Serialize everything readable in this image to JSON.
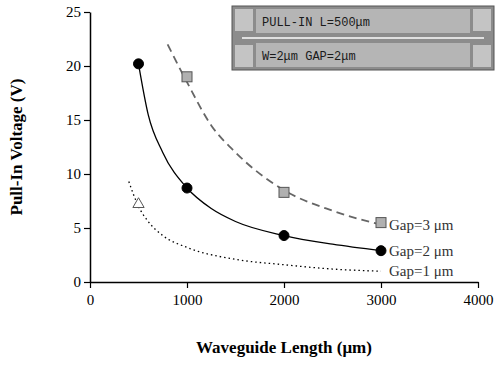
{
  "chart_data": {
    "type": "line",
    "x_label": "Waveguide Length (μm)",
    "y_label": "Pull-In Voltage (V)",
    "annotations": [
      "PULL-IN L=500μm",
      "W=2μm GAP=2μm"
    ],
    "xlim": [
      0,
      4000
    ],
    "xticks": [
      0,
      1000,
      2000,
      3000,
      4000
    ],
    "ylim": [
      0,
      25
    ],
    "yticks": [
      0,
      5,
      10,
      15,
      20,
      25
    ],
    "grid": false,
    "series": [
      {
        "name": "Gap=3 μm",
        "type": "line",
        "line_style": "dashed",
        "color": "#666666",
        "x": [
          800,
          1000,
          1250,
          1500,
          2000,
          2500,
          3000
        ],
        "values": [
          22,
          18.5,
          14.5,
          12,
          8.5,
          6.6,
          5.3
        ]
      },
      {
        "name": "Gap=2 μm",
        "type": "line",
        "line_style": "solid",
        "color": "#000000",
        "x": [
          500,
          600,
          750,
          1000,
          1250,
          1500,
          2000,
          2500,
          3000
        ],
        "values": [
          20.2,
          15.5,
          12,
          8.7,
          6.8,
          5.6,
          4.3,
          3.5,
          2.9
        ]
      },
      {
        "name": "Gap=1 μm",
        "type": "line",
        "line_style": "dotted",
        "color": "#000000",
        "x": [
          400,
          500,
          600,
          750,
          1000,
          1500,
          2000,
          2500,
          3000
        ],
        "values": [
          9.3,
          7.0,
          5.6,
          4.3,
          3.2,
          2.1,
          1.6,
          1.2,
          1.0
        ]
      },
      {
        "type": "scatter",
        "marker": "square",
        "color": "#b0b0b0",
        "x": [
          1000,
          2000,
          3000
        ],
        "values": [
          19,
          8.3,
          5.5
        ]
      },
      {
        "type": "scatter",
        "marker": "circle",
        "color": "#000000",
        "x": [
          500,
          1000,
          2000,
          3000
        ],
        "values": [
          20.2,
          8.7,
          4.3,
          2.9
        ]
      },
      {
        "type": "scatter",
        "marker": "triangle",
        "color": "#ffffff",
        "x": [
          500
        ],
        "values": [
          7.2
        ]
      }
    ]
  }
}
